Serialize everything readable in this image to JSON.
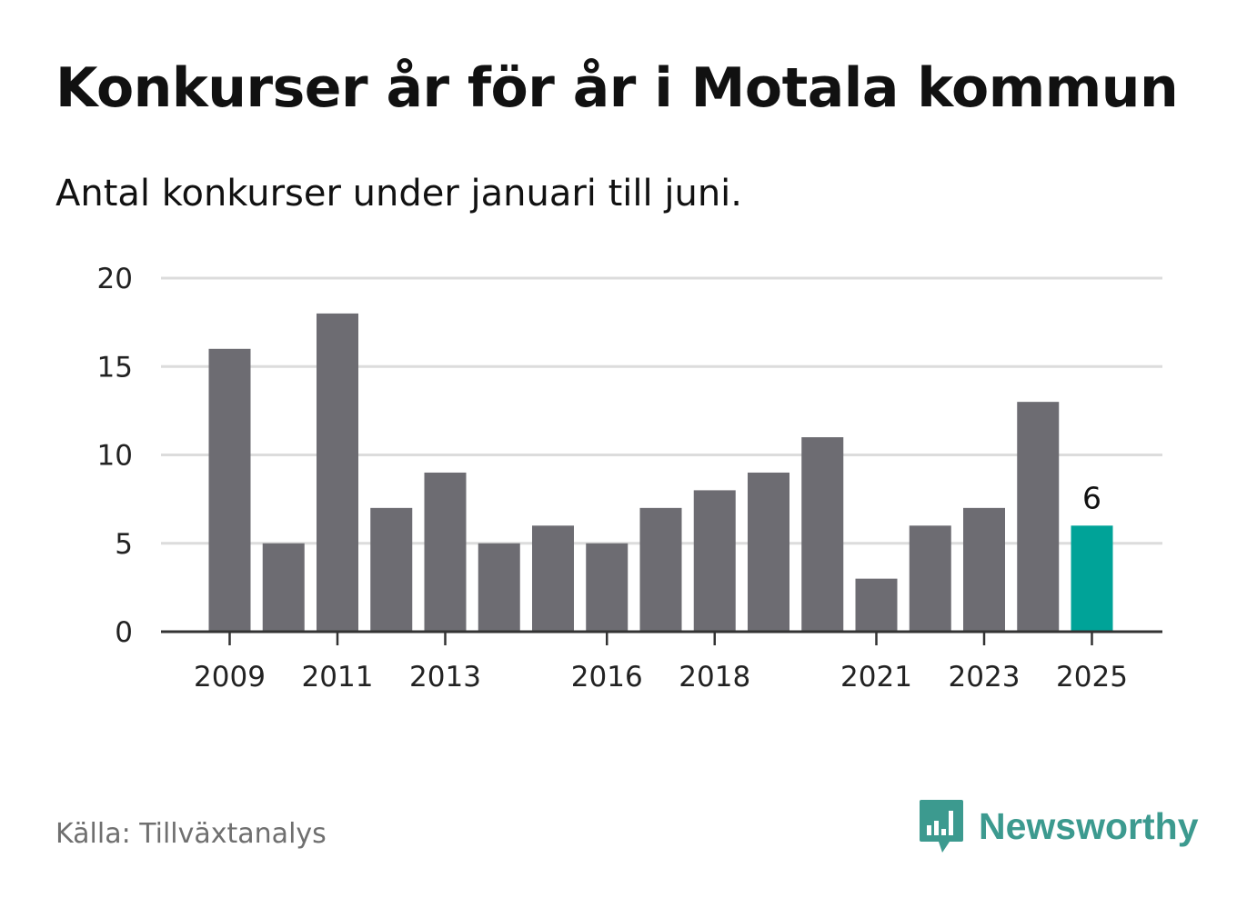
{
  "title": "Konkurser år för år i Motala kommun",
  "subtitle": "Antal konkurser under januari till juni.",
  "source": "Källa: Tillväxtanalys",
  "logo": {
    "text": "Newsworthy",
    "icon": "newsworthy-chart-bubble-icon",
    "color": "#3c9a8f"
  },
  "colors": {
    "bar": "#6d6c72",
    "highlight": "#00a398",
    "grid": "#dcdcdc",
    "axis": "#333333"
  },
  "chart_data": {
    "type": "bar",
    "categories": [
      "2009",
      "2010",
      "2011",
      "2012",
      "2013",
      "2014",
      "2015",
      "2016",
      "2017",
      "2018",
      "2019",
      "2020",
      "2021",
      "2022",
      "2023",
      "2024",
      "2025"
    ],
    "values": [
      16,
      5,
      18,
      7,
      9,
      5,
      6,
      5,
      7,
      8,
      9,
      11,
      3,
      6,
      7,
      13,
      6
    ],
    "x_tick_labels": [
      "2009",
      "2011",
      "2013",
      "2016",
      "2018",
      "2021",
      "2023",
      "2025"
    ],
    "y_ticks": [
      0,
      5,
      10,
      15,
      20
    ],
    "ylim": [
      0,
      20
    ],
    "grid": true,
    "highlight": {
      "category": "2025",
      "value_label": "6"
    },
    "xlabel": "",
    "ylabel": ""
  }
}
